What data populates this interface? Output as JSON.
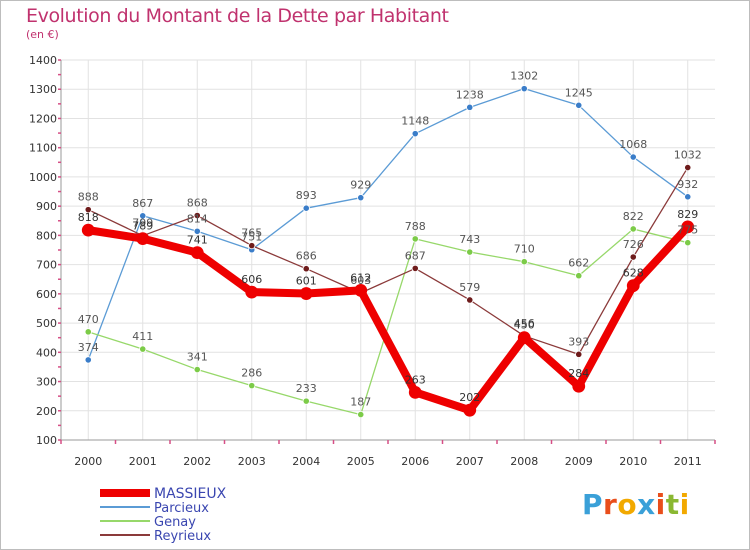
{
  "title": "Evolution du Montant de la Dette par Habitant",
  "unit": "(en €)",
  "logo": {
    "text": "Proxiti",
    "letters": [
      "P",
      "r",
      "o",
      "x",
      "i",
      "t",
      "i"
    ],
    "colors": [
      "#3aa0d8",
      "#e94e1b",
      "#f2a900",
      "#3aa0d8",
      "#e94e1b",
      "#8ab832",
      "#f2a900"
    ]
  },
  "chart_data": {
    "type": "line",
    "title": "Evolution du Montant de la Dette par Habitant",
    "ylabel": "(en €)",
    "xlabel": "",
    "ylim": [
      100,
      1400
    ],
    "yticks": [
      100,
      200,
      300,
      400,
      500,
      600,
      700,
      800,
      900,
      1000,
      1100,
      1200,
      1300,
      1400
    ],
    "categories": [
      "2000",
      "2001",
      "2002",
      "2003",
      "2004",
      "2005",
      "2006",
      "2007",
      "2008",
      "2009",
      "2010",
      "2011"
    ],
    "legend_position": "bottom-left",
    "series": [
      {
        "name": "Parcieux",
        "color": "#5b9bd5",
        "marker": "#3a7dc9",
        "width": 1.3,
        "labelFill": "#555555",
        "values": [
          374,
          867,
          814,
          751,
          893,
          929,
          1148,
          1238,
          1302,
          1245,
          1068,
          932
        ]
      },
      {
        "name": "Genay",
        "color": "#97d86a",
        "marker": "#7ccb48",
        "width": 1.3,
        "labelFill": "#555555",
        "values": [
          470,
          411,
          341,
          286,
          233,
          187,
          788,
          743,
          710,
          662,
          822,
          775
        ]
      },
      {
        "name": "Reyrieux",
        "color": "#8b3a3a",
        "marker": "#6e1b1b",
        "width": 1.3,
        "labelFill": "#555555",
        "values": [
          888,
          799,
          868,
          765,
          686,
          603,
          687,
          579,
          456,
          393,
          726,
          1032
        ]
      },
      {
        "name": "MASSIEUX",
        "color": "#ee0000",
        "marker": "#ee0000",
        "width": 8,
        "labelFill": "#333333",
        "values": [
          818,
          789,
          741,
          606,
          601,
          612,
          263,
          202,
          450,
          284,
          628,
          829
        ]
      }
    ]
  }
}
